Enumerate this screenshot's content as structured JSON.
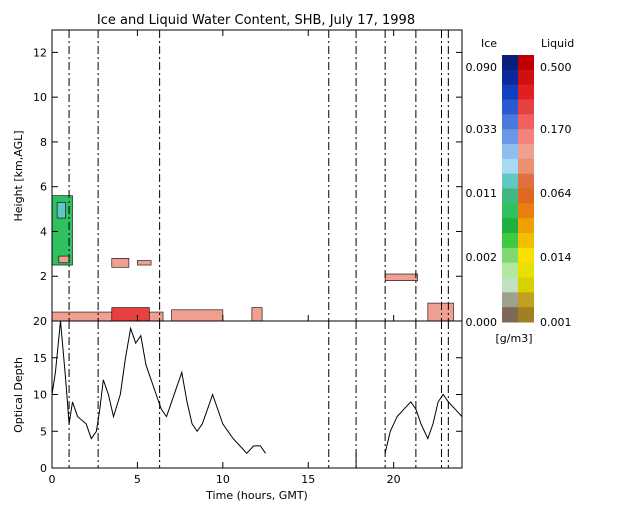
{
  "chart_data": [
    {
      "type": "heatmap",
      "title": "Ice and Liquid Water Content, SHB, July 17, 1998",
      "xlabel": "",
      "ylabel": "Height [km,AGL]",
      "xlim": [
        0,
        24
      ],
      "ylim": [
        0,
        13
      ],
      "yticks": [
        2,
        4,
        6,
        8,
        10,
        12
      ],
      "xticks": [
        0,
        5,
        10,
        15,
        20
      ],
      "gaps_hours": [
        1.0,
        2.7,
        6.3,
        16.2,
        17.8,
        19.5,
        21.3,
        22.8,
        23.2
      ],
      "cloud_regions": [
        {
          "phase": "ice",
          "t0": 0.0,
          "t1": 1.2,
          "h0": 2.5,
          "h1": 5.6,
          "value": 0.002
        },
        {
          "phase": "ice",
          "t0": 0.3,
          "t1": 0.8,
          "h0": 4.6,
          "h1": 5.3,
          "value": 0.005
        },
        {
          "phase": "liquid",
          "t0": 0.0,
          "t1": 6.5,
          "h0": 0.0,
          "h1": 0.4,
          "value": 0.064
        },
        {
          "phase": "liquid",
          "t0": 3.5,
          "t1": 5.7,
          "h0": 0.0,
          "h1": 0.6,
          "value": 0.17
        },
        {
          "phase": "liquid",
          "t0": 7.0,
          "t1": 10.0,
          "h0": 0.0,
          "h1": 0.5,
          "value": 0.064
        },
        {
          "phase": "liquid",
          "t0": 11.7,
          "t1": 12.3,
          "h0": 0.0,
          "h1": 0.6,
          "value": 0.064
        },
        {
          "phase": "liquid",
          "t0": 0.4,
          "t1": 1.0,
          "h0": 2.6,
          "h1": 2.9,
          "value": 0.064
        },
        {
          "phase": "liquid",
          "t0": 3.5,
          "t1": 4.5,
          "h0": 2.4,
          "h1": 2.8,
          "value": 0.064
        },
        {
          "phase": "liquid",
          "t0": 5.0,
          "t1": 5.8,
          "h0": 2.5,
          "h1": 2.7,
          "value": 0.064
        },
        {
          "phase": "liquid",
          "t0": 19.5,
          "t1": 21.4,
          "h0": 1.8,
          "h1": 2.1,
          "value": 0.064
        },
        {
          "phase": "liquid",
          "t0": 22.0,
          "t1": 23.5,
          "h0": 0.0,
          "h1": 0.8,
          "value": 0.064
        }
      ],
      "colorbar": {
        "ice_label": "Ice",
        "liquid_label": "Liquid",
        "ice_ticks": [
          "0.090",
          "0.033",
          "0.011",
          "0.002",
          "0.000"
        ],
        "liquid_ticks": [
          "0.500",
          "0.170",
          "0.064",
          "0.014",
          "0.001"
        ],
        "units": "[g/m3]",
        "ice_colors": [
          "#0a1f7a",
          "#0a2a9a",
          "#1040c0",
          "#2a5ad0",
          "#4a78dc",
          "#6a98e6",
          "#8cbef0",
          "#a8d8f4",
          "#60c8c0",
          "#40b880",
          "#30c060",
          "#20b040",
          "#40c840",
          "#80d870",
          "#b0e8a0",
          "#c0e0c0",
          "#a0a090",
          "#806858"
        ],
        "liquid_colors": [
          "#c00000",
          "#d01010",
          "#e02020",
          "#e84040",
          "#f06060",
          "#f48080",
          "#f0a090",
          "#e89070",
          "#e07040",
          "#e06820",
          "#e88010",
          "#f0a000",
          "#f0c000",
          "#f8e000",
          "#e8e000",
          "#d8d000",
          "#c0a020",
          "#a08020"
        ]
      }
    },
    {
      "type": "line",
      "title": "",
      "xlabel": "Time (hours, GMT)",
      "ylabel": "Optical Depth",
      "xlim": [
        0,
        24
      ],
      "ylim": [
        0,
        20
      ],
      "yticks": [
        0,
        5,
        10,
        15,
        20
      ],
      "xticks": [
        0,
        5,
        10,
        15,
        20
      ],
      "series": [
        {
          "segments": [
            [
              [
                0.0,
                10
              ],
              [
                0.2,
                13
              ],
              [
                0.5,
                20
              ],
              [
                0.8,
                12
              ],
              [
                1.0,
                6
              ],
              [
                1.2,
                9
              ],
              [
                1.5,
                7
              ],
              [
                2.0,
                6
              ],
              [
                2.3,
                4
              ],
              [
                2.6,
                5
              ],
              [
                2.8,
                8
              ],
              [
                3.0,
                12
              ],
              [
                3.3,
                10
              ],
              [
                3.6,
                7
              ],
              [
                4.0,
                10
              ],
              [
                4.3,
                15
              ],
              [
                4.6,
                19
              ],
              [
                4.9,
                17
              ],
              [
                5.2,
                18
              ],
              [
                5.5,
                14
              ],
              [
                5.8,
                12
              ],
              [
                6.1,
                10
              ],
              [
                6.4,
                8
              ],
              [
                6.7,
                7
              ],
              [
                7.0,
                9
              ],
              [
                7.3,
                11
              ],
              [
                7.6,
                13
              ],
              [
                7.9,
                9
              ],
              [
                8.2,
                6
              ],
              [
                8.5,
                5
              ],
              [
                8.8,
                6
              ],
              [
                9.1,
                8
              ],
              [
                9.4,
                10
              ],
              [
                9.7,
                8
              ],
              [
                10.0,
                6
              ],
              [
                10.3,
                5
              ],
              [
                10.6,
                4
              ],
              [
                11.0,
                3
              ],
              [
                11.4,
                2
              ],
              [
                11.8,
                3
              ],
              [
                12.2,
                3
              ],
              [
                12.5,
                2
              ]
            ],
            [
              [
                17.8,
                0
              ],
              [
                17.8,
                2
              ]
            ],
            [
              [
                19.5,
                2
              ],
              [
                19.8,
                5
              ],
              [
                20.2,
                7
              ],
              [
                20.6,
                8
              ],
              [
                21.0,
                9
              ],
              [
                21.3,
                8
              ],
              [
                21.6,
                6
              ],
              [
                22.0,
                4
              ],
              [
                22.3,
                6
              ],
              [
                22.6,
                9
              ],
              [
                22.9,
                10
              ],
              [
                23.2,
                9
              ],
              [
                23.6,
                8
              ],
              [
                24.0,
                7
              ]
            ]
          ]
        }
      ]
    }
  ]
}
